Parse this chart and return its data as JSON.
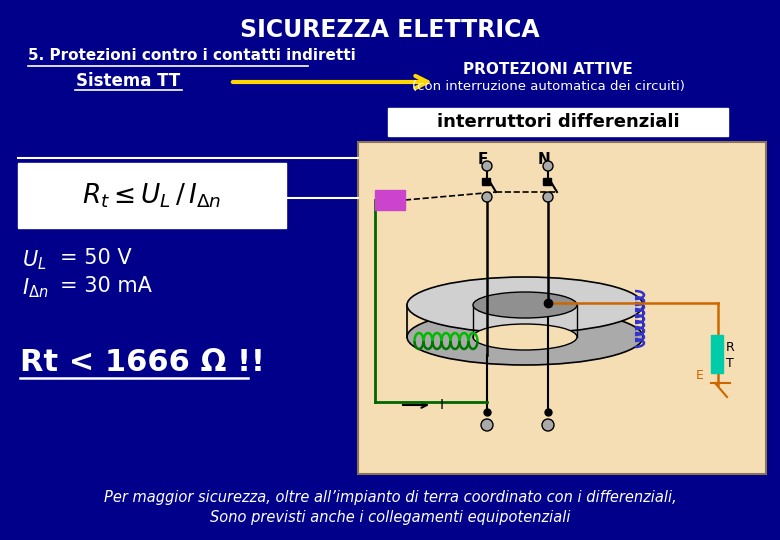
{
  "bg_color": "#00008B",
  "title": "SICUREZZA ELETTRICA",
  "title_color": "#FFFFFF",
  "subtitle1": "5. Protezioni contro i contatti indiretti",
  "subtitle2": "Sistema TT",
  "protezioni_title": "PROTEZIONI ATTIVE",
  "protezioni_sub": "(con interruzione automatica dei circuiti)",
  "box_label": "interruttori differenziali",
  "formula_box_color": "#FFFFFF",
  "rt_text": "Rt < 1666 Ω !!",
  "footer1": "Per maggior sicurezza, oltre all’impianto di terra coordinato con i differenziali,",
  "footer2": "Sono previsti anche i collegamenti equipotenziali",
  "diagram_bg": "#F5DEB3",
  "arrow_color": "#FFD700",
  "text_color_white": "#FFFFFF",
  "text_color_yellow": "#FFD700"
}
